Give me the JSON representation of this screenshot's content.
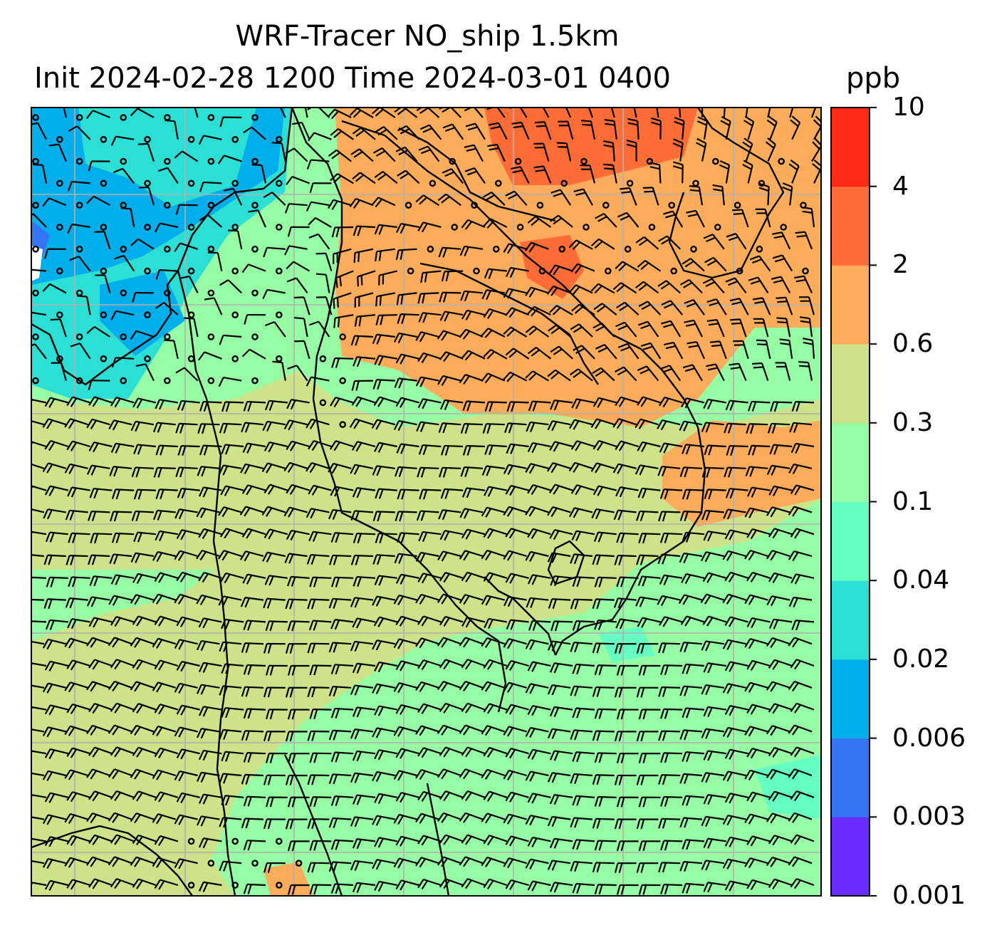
{
  "title": {
    "line1": "WRF-Tracer NO_ship 1.5km",
    "line2": "Init 2024-02-28 1200 Time 2024-03-01 0400"
  },
  "colorbar": {
    "unit": "ppb",
    "ticks": [
      "0.001",
      "0.003",
      "0.006",
      "0.02",
      "0.04",
      "0.1",
      "0.3",
      "0.6",
      "2",
      "4",
      "10"
    ],
    "colors": [
      "#6a2cff",
      "#3674f6",
      "#00aeeb",
      "#2cdfd5",
      "#66ffc2",
      "#96fda4",
      "#cde38a",
      "#fdac5b",
      "#ff6c36",
      "#ff2b16"
    ]
  },
  "map": {
    "field_colors": {
      "very_low": "#00aeeb",
      "low": "#2cdfd5",
      "mid_low": "#66ffc2",
      "mid": "#96fda4",
      "mid_high": "#cde38a",
      "high": "#fdac5b",
      "very_high": "#ff6c36"
    },
    "gridline_color": "#b0b0b0",
    "coastline_color": "#000000",
    "barb_color": "#000000"
  }
}
